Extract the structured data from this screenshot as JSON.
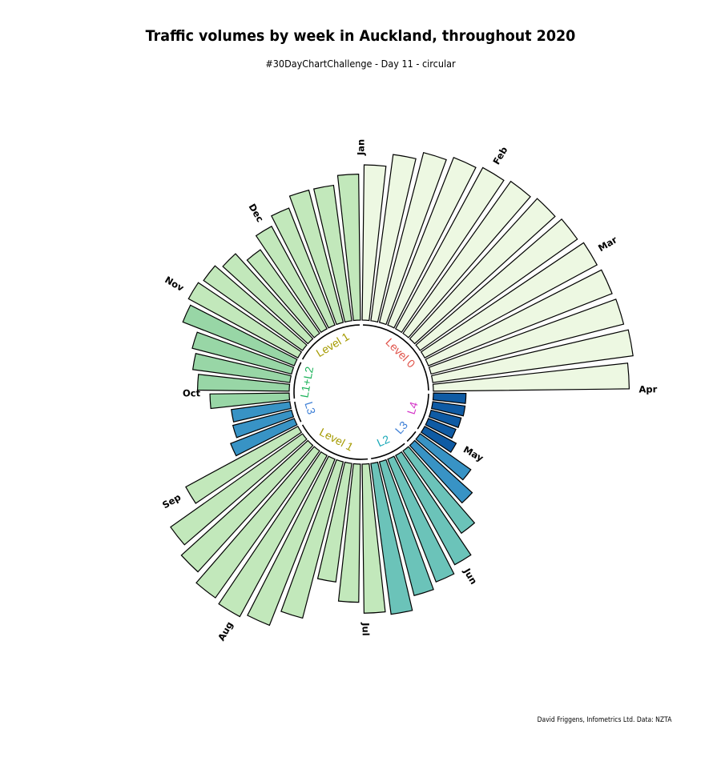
{
  "title": "Traffic volumes by week in Auckland, throughout 2020",
  "subtitle": "#30DayChartChallenge - Day 11 - circular",
  "caption": "David Friggens, Infometrics Ltd. Data: NZTA",
  "chart_data": {
    "type": "bar",
    "coordinate_system": "polar",
    "x_unit": "week",
    "x": [
      1,
      2,
      3,
      4,
      5,
      6,
      7,
      8,
      9,
      10,
      11,
      12,
      13,
      14,
      15,
      16,
      17,
      18,
      19,
      20,
      21,
      22,
      23,
      24,
      25,
      26,
      27,
      28,
      29,
      30,
      31,
      32,
      33,
      34,
      35,
      36,
      37,
      38,
      39,
      40,
      41,
      42,
      43,
      44,
      45,
      46,
      47,
      48,
      49,
      50,
      51,
      52
    ],
    "values": [
      100,
      108,
      113,
      116,
      118,
      120,
      122,
      124,
      126,
      127,
      128,
      130,
      126,
      21,
      21,
      20,
      19,
      23,
      40,
      50,
      65,
      80,
      85,
      89,
      98,
      96,
      89,
      77,
      104,
      115,
      118,
      116,
      110,
      104,
      82,
      44,
      39,
      38,
      51,
      59,
      63,
      66,
      77,
      80,
      78,
      74,
      66,
      75,
      81,
      88,
      88,
      94
    ],
    "level": [
      "Level 0",
      "Level 0",
      "Level 0",
      "Level 0",
      "Level 0",
      "Level 0",
      "Level 0",
      "Level 0",
      "Level 0",
      "Level 0",
      "Level 0",
      "Level 0",
      "Level 0",
      "L4",
      "L4",
      "L4",
      "L4",
      "L4",
      "L3",
      "L3",
      "L2",
      "L2",
      "L2",
      "L2",
      "L2",
      "Level 1",
      "Level 1",
      "Level 1",
      "Level 1",
      "Level 1",
      "Level 1",
      "Level 1",
      "Level 1",
      "Level 1",
      "Level 1",
      "L3",
      "L3",
      "L3",
      "L1+L2",
      "L1+L2",
      "L1+L2",
      "L1+L2",
      "L1+L2",
      "Level 1",
      "Level 1",
      "Level 1",
      "Level 1",
      "Level 1",
      "Level 1",
      "Level 1",
      "Level 1",
      "Level 1"
    ],
    "fill_colors": {
      "Level 0": "#edf8e2",
      "Level 1": "#c2e8bb",
      "L1+L2": "#98d6a6",
      "L2": "#6bc3b9",
      "L3": "#3893c5",
      "L4": "#0f5ba4"
    },
    "month_labels": [
      "Jan",
      "Feb",
      "Mar",
      "Apr",
      "May",
      "Jun",
      "Jul",
      "Aug",
      "Sep",
      "Oct",
      "Nov",
      "Dec"
    ],
    "period_labels": [
      {
        "text": "Level 0",
        "color": "#e0534a"
      },
      {
        "text": "L4",
        "color": "#d434c8"
      },
      {
        "text": "L3",
        "color": "#3d7fd6"
      },
      {
        "text": "L2",
        "color": "#1aa9b8"
      },
      {
        "text": "Level 1",
        "color": "#a59a00"
      },
      {
        "text": "L3",
        "color": "#3d7fd6"
      },
      {
        "text": "L1+L2",
        "color": "#1fb35c"
      },
      {
        "text": "Level 1",
        "color": "#a59a00"
      }
    ],
    "grid": false,
    "legend": "none"
  }
}
